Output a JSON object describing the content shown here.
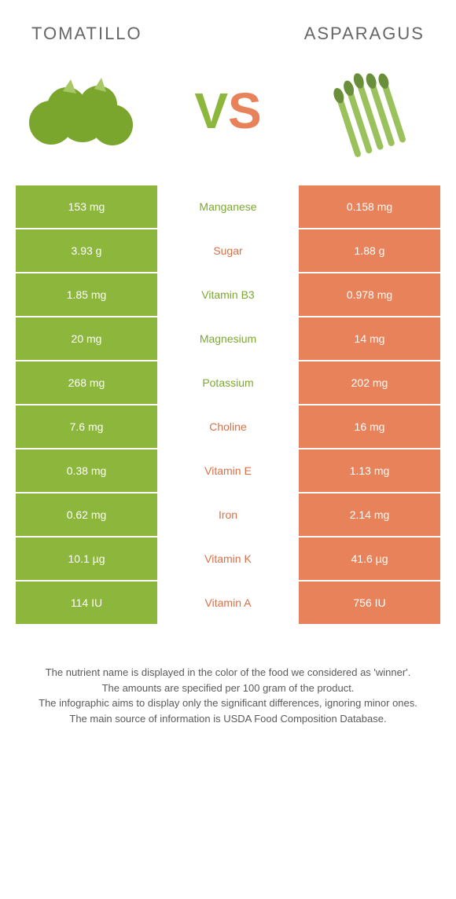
{
  "header": {
    "left": "TOMATILLO",
    "right": "ASPARAGUS"
  },
  "vs": {
    "v": "V",
    "s": "S"
  },
  "colors": {
    "green": "#8cb63c",
    "orange": "#e8825a",
    "mid_green": "#7ba830",
    "mid_orange": "#d96f47"
  },
  "rows": [
    {
      "left": "153 mg",
      "mid": "Manganese",
      "right": "0.158 mg",
      "winner": "green"
    },
    {
      "left": "3.93 g",
      "mid": "Sugar",
      "right": "1.88 g",
      "winner": "orange"
    },
    {
      "left": "1.85 mg",
      "mid": "Vitamin B3",
      "right": "0.978 mg",
      "winner": "green"
    },
    {
      "left": "20 mg",
      "mid": "Magnesium",
      "right": "14 mg",
      "winner": "green"
    },
    {
      "left": "268 mg",
      "mid": "Potassium",
      "right": "202 mg",
      "winner": "green"
    },
    {
      "left": "7.6 mg",
      "mid": "Choline",
      "right": "16 mg",
      "winner": "orange"
    },
    {
      "left": "0.38 mg",
      "mid": "Vitamin E",
      "right": "1.13 mg",
      "winner": "orange"
    },
    {
      "left": "0.62 mg",
      "mid": "Iron",
      "right": "2.14 mg",
      "winner": "orange"
    },
    {
      "left": "10.1 µg",
      "mid": "Vitamin K",
      "right": "41.6 µg",
      "winner": "orange"
    },
    {
      "left": "114 IU",
      "mid": "Vitamin A",
      "right": "756 IU",
      "winner": "orange"
    }
  ],
  "footer": {
    "l1": "The nutrient name is displayed in the color of the food we considered as 'winner'.",
    "l2": "The amounts are specified per 100 gram of the product.",
    "l3": "The infographic aims to display only the significant differences, ignoring minor ones.",
    "l4": "The main source of information is USDA Food Composition Database."
  }
}
